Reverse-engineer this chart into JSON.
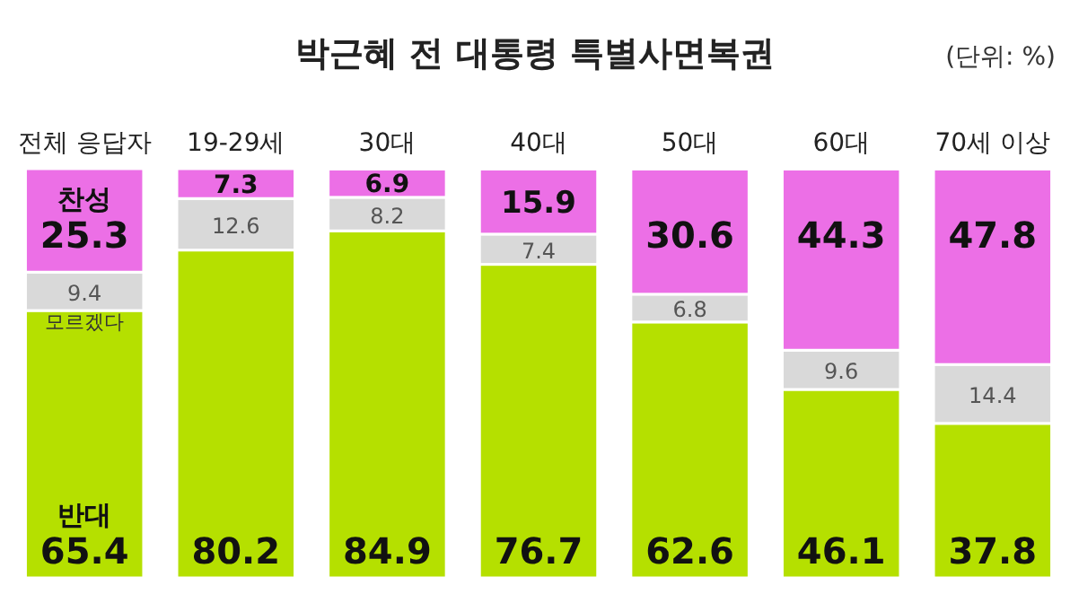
{
  "chart_data": {
    "type": "bar",
    "stacked": true,
    "title": "박근혜 전 대통령 특별사면복권",
    "annotations": [
      "(단위: %)"
    ],
    "data_labels": true,
    "categories": [
      "전체 응답자",
      "19-29세",
      "30대",
      "40대",
      "50대",
      "60대",
      "70세 이상"
    ],
    "series": [
      {
        "name": "반대",
        "color": "#b5e000",
        "values": [
          65.4,
          80.2,
          84.9,
          76.7,
          62.6,
          46.1,
          37.8
        ]
      },
      {
        "name": "모르겠다",
        "color": "#d9d9d9",
        "values": [
          9.4,
          12.6,
          8.2,
          7.4,
          6.8,
          9.6,
          14.4
        ]
      },
      {
        "name": "찬성",
        "color": "#ec6fe6",
        "values": [
          25.3,
          7.3,
          6.9,
          15.9,
          30.6,
          44.3,
          47.8
        ]
      }
    ]
  }
}
